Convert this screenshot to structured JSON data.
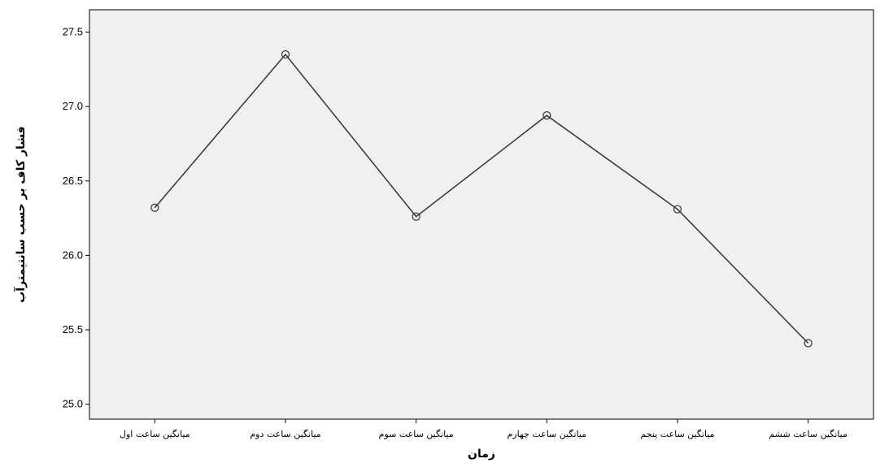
{
  "chart_data": {
    "type": "line",
    "title": "",
    "xlabel": "زمان",
    "ylabel": "فشار کاف بر حسب سانتیمترآب",
    "categories": [
      "میانگین ساعت اول",
      "میانگین ساعت دوم",
      "میانگین ساعت سوم",
      "میانگین ساعت چهارم",
      "میانگین ساعت پنجم",
      "میانگین ساعت ششم"
    ],
    "series": [
      {
        "values": [
          26.32,
          27.35,
          26.26,
          26.94,
          26.31,
          25.41
        ]
      }
    ],
    "ylim": [
      24.9,
      27.65
    ],
    "yticks": [
      25.0,
      25.5,
      26.0,
      26.5,
      27.0,
      27.5
    ],
    "grid": false,
    "legend": "none",
    "colors": {
      "plot_background": "#f0f0f0",
      "line": "#333333",
      "marker": "#333333"
    }
  }
}
